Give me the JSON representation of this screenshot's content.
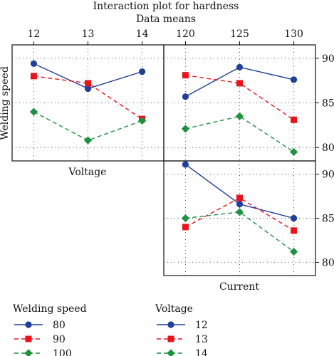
{
  "chart_data": {
    "type": "line",
    "title": "Interaction plot for hardness",
    "subtitle": "Data means",
    "factors": {
      "welding_speed": {
        "label": "Welding speed",
        "levels": [
          "80",
          "90",
          "100"
        ]
      },
      "voltage": {
        "label": "Voltage",
        "levels": [
          "12",
          "13",
          "14"
        ]
      },
      "current": {
        "label": "Current"
      }
    },
    "panels": [
      {
        "id": "ws-by-voltage",
        "x_factor": "voltage",
        "x": [
          12,
          13,
          14
        ],
        "xlim": [
          11.6,
          14.4
        ],
        "ylim": [
          78.5,
          91.5
        ],
        "row_label": "Welding speed",
        "col_label": "Voltage",
        "legend_group": "welding_speed",
        "series": [
          {
            "name": "80",
            "values": [
              89.4,
              86.6,
              88.5
            ]
          },
          {
            "name": "90",
            "values": [
              88.0,
              87.2,
              83.2
            ]
          },
          {
            "name": "100",
            "values": [
              84.0,
              80.8,
              83.0
            ]
          }
        ]
      },
      {
        "id": "ws-by-current",
        "x_factor": "current",
        "x": [
          120,
          125,
          130
        ],
        "xlim": [
          118,
          132
        ],
        "ylim": [
          78.5,
          91.5
        ],
        "legend_group": "welding_speed",
        "series": [
          {
            "name": "80",
            "values": [
              85.7,
              89.0,
              87.6
            ]
          },
          {
            "name": "90",
            "values": [
              88.1,
              87.2,
              83.1
            ]
          },
          {
            "name": "100",
            "values": [
              82.1,
              83.5,
              79.5
            ]
          }
        ]
      },
      {
        "id": "voltage-by-current",
        "x_factor": "current",
        "x": [
          120,
          125,
          130
        ],
        "xlim": [
          118,
          132
        ],
        "ylim": [
          78.5,
          91.5
        ],
        "col_label": "Current",
        "legend_group": "voltage",
        "series": [
          {
            "name": "12",
            "values": [
              91.1,
              86.6,
              85.0
            ]
          },
          {
            "name": "13",
            "values": [
              84.0,
              87.3,
              83.6
            ]
          },
          {
            "name": "14",
            "values": [
              85.0,
              85.7,
              81.2
            ]
          }
        ]
      }
    ],
    "top_axis_ticks": {
      "voltage": [
        "12",
        "13",
        "14"
      ],
      "current": [
        "120",
        "125",
        "130"
      ]
    },
    "right_axis_ticks": [
      "80",
      "85",
      "90"
    ],
    "y_tick_values": [
      80,
      85,
      90
    ],
    "legends": [
      {
        "id": "welding_speed",
        "title": "Welding speed",
        "entries": [
          "80",
          "90",
          "100"
        ]
      },
      {
        "id": "voltage",
        "title": "Voltage",
        "entries": [
          "12",
          "13",
          "14"
        ]
      }
    ],
    "series_styles": [
      {
        "color": "#1f3f9a",
        "dash": "none",
        "marker": "circle"
      },
      {
        "color": "#e8141c",
        "dash": "6,4",
        "marker": "square"
      },
      {
        "color": "#1e9140",
        "dash": "6,4",
        "marker": "diamond"
      }
    ],
    "grid": "dotted"
  }
}
